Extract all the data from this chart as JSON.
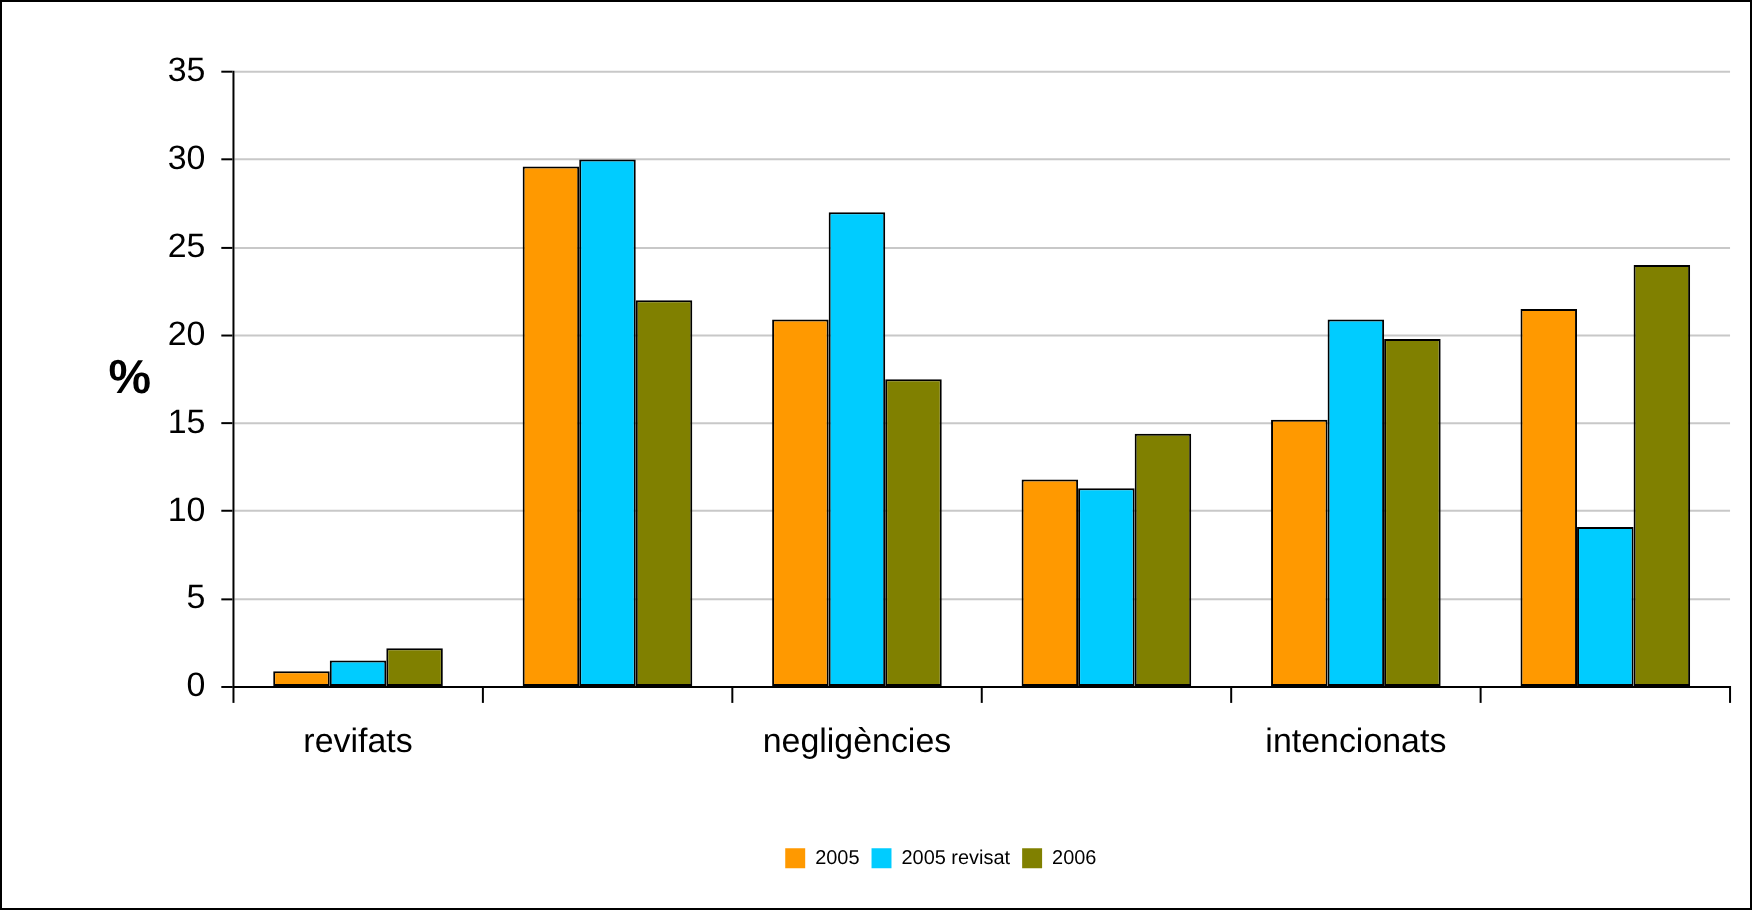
{
  "chart_data": {
    "type": "bar",
    "ylabel": "%",
    "categories": [
      "revifats",
      null,
      "negligències",
      null,
      "intencionats",
      null
    ],
    "series": [
      {
        "name": "2005",
        "color": "#ff9900",
        "values": [
          0.9,
          29.6,
          20.9,
          11.8,
          15.2,
          21.5
        ]
      },
      {
        "name": "2005 revisat",
        "color": "#00ccff",
        "values": [
          1.5,
          30.0,
          27.0,
          11.3,
          20.9,
          9.1
        ]
      },
      {
        "name": "2006",
        "color": "#808000",
        "values": [
          2.2,
          22.0,
          17.5,
          14.4,
          19.8,
          24.0
        ]
      }
    ],
    "ylim": [
      0,
      35
    ],
    "yticks": [
      0,
      5,
      10,
      15,
      20,
      25,
      30,
      35
    ],
    "grid": "y",
    "legend": "bottom"
  }
}
